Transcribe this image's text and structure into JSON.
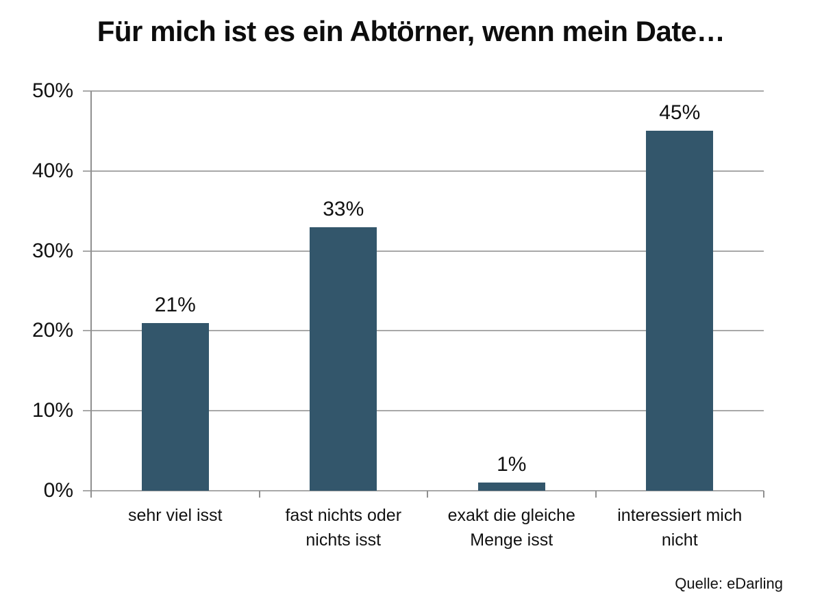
{
  "title": "Für mich ist es ein Abtörner, wenn mein Date…",
  "source": "Quelle: eDarling",
  "colors": {
    "bar": "#33566b",
    "gridline": "#a8a8a8",
    "axis": "#8f8f8f",
    "text": "#111111",
    "background": "#ffffff"
  },
  "chart_data": {
    "type": "bar",
    "title": "Für mich ist es ein Abtörner, wenn mein Date…",
    "categories": [
      "sehr viel isst",
      "fast nichts oder nichts isst",
      "exakt die gleiche Menge isst",
      "interessiert mich nicht"
    ],
    "values": [
      21,
      33,
      1,
      45
    ],
    "value_labels": [
      "21%",
      "33%",
      "1%",
      "45%"
    ],
    "xlabel": "",
    "ylabel": "",
    "ylim": [
      0,
      50
    ],
    "ytick_step": 10,
    "ytick_labels": [
      "0%",
      "10%",
      "20%",
      "30%",
      "40%",
      "50%"
    ],
    "grid": "horizontal",
    "legend": "none",
    "source": "Quelle: eDarling"
  }
}
